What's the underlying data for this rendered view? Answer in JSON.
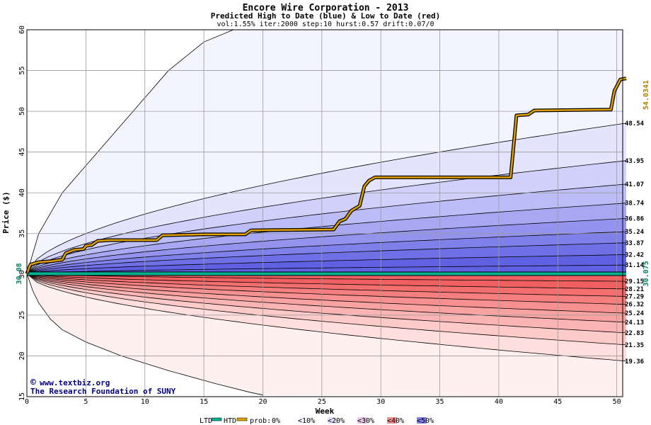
{
  "chart_data": {
    "type": "area",
    "title": "Encore Wire Corporation - 2013",
    "subtitle": "Predicted High to Date (blue) &  Low to Date (red)",
    "params": "vol:1.55% iter:2000 step:10 hurst:0.57 drift:0.07/0",
    "xlabel": "Week",
    "ylabel": "Price ($)",
    "xlim": [
      0,
      50.5
    ],
    "ylim": [
      15,
      60
    ],
    "x_ticks": [
      "0",
      "5",
      "10",
      "15",
      "20",
      "25",
      "30",
      "35",
      "40",
      "45",
      "50"
    ],
    "y_ticks": [
      "15",
      "20",
      "25",
      "30",
      "35",
      "40",
      "45",
      "50",
      "55",
      "60"
    ],
    "grid": true,
    "start_price": 30.08,
    "start_label": "30.08",
    "high_band_labels": [
      {
        "text": "48.54",
        "value": 48.54
      },
      {
        "text": "43.95",
        "value": 43.95
      },
      {
        "text": "41.07",
        "value": 41.07
      },
      {
        "text": "38.74",
        "value": 38.74
      },
      {
        "text": "36.86",
        "value": 36.86
      },
      {
        "text": "35.24",
        "value": 35.24
      },
      {
        "text": "33.87",
        "value": 33.87
      },
      {
        "text": "32.42",
        "value": 32.42
      },
      {
        "text": "31.14",
        "value": 31.14
      }
    ],
    "low_band_labels": [
      {
        "text": "29.15",
        "value": 29.15
      },
      {
        "text": "28.21",
        "value": 28.21
      },
      {
        "text": "27.29",
        "value": 27.29
      },
      {
        "text": "26.32",
        "value": 26.32
      },
      {
        "text": "25.24",
        "value": 25.24
      },
      {
        "text": "24.13",
        "value": 24.13
      },
      {
        "text": "22.83",
        "value": 22.83
      },
      {
        "text": "21.35",
        "value": 21.35
      },
      {
        "text": "19.36",
        "value": 19.36
      }
    ],
    "outer_high": [
      [
        0,
        30.08
      ],
      [
        1,
        35
      ],
      [
        3,
        40
      ],
      [
        6,
        45
      ],
      [
        9,
        50
      ],
      [
        12,
        55
      ],
      [
        15,
        58.5
      ],
      [
        17.5,
        60
      ]
    ],
    "outer_low": [
      [
        0,
        30.08
      ],
      [
        0.5,
        28
      ],
      [
        1,
        26.5
      ],
      [
        2,
        24.5
      ],
      [
        3,
        23.2
      ],
      [
        5,
        21.7
      ],
      [
        8,
        20
      ],
      [
        12,
        18.2
      ],
      [
        16,
        16.6
      ],
      [
        19,
        15.5
      ],
      [
        20,
        15.2
      ]
    ],
    "htd_series": {
      "name": "HTD",
      "color": "#e0a000",
      "points": [
        [
          0,
          30.08
        ],
        [
          0.3,
          31.2
        ],
        [
          1,
          31.5
        ],
        [
          2,
          31.6
        ],
        [
          3,
          31.8
        ],
        [
          3.3,
          32.6
        ],
        [
          4,
          33
        ],
        [
          4.8,
          33.1
        ],
        [
          5,
          33.5
        ],
        [
          5.5,
          33.6
        ],
        [
          6,
          34.1
        ],
        [
          7,
          34.2
        ],
        [
          11,
          34.2
        ],
        [
          11.5,
          34.8
        ],
        [
          15,
          34.9
        ],
        [
          18.5,
          34.9
        ],
        [
          19,
          35.4
        ],
        [
          26,
          35.5
        ],
        [
          26.5,
          36.5
        ],
        [
          27,
          36.8
        ],
        [
          27.5,
          37.8
        ],
        [
          28.2,
          38.4
        ],
        [
          28.6,
          40.8
        ],
        [
          29,
          41.5
        ],
        [
          29.5,
          41.9
        ],
        [
          41,
          41.9
        ],
        [
          41.5,
          49.5
        ],
        [
          42.5,
          49.6
        ],
        [
          43,
          50.1
        ],
        [
          49.5,
          50.2
        ],
        [
          49.8,
          52.5
        ],
        [
          50.3,
          53.9
        ],
        [
          50.8,
          54.03
        ]
      ]
    },
    "ltd_series": {
      "name": "LTD",
      "color": "#00b090",
      "points": [
        [
          0,
          30.08
        ],
        [
          50.8,
          30.075
        ]
      ]
    },
    "end_high_label": "54.0341",
    "end_low_label": "30.075",
    "credit": [
      "www.textbiz.org",
      "The Research Foundation of SUNY"
    ],
    "legend": {
      "ltd": "LTD",
      "htd": "HTD",
      "prob": "prob:",
      "buckets": [
        "0%",
        "<10%",
        "<20%",
        "<30%",
        "<40%",
        "<50%"
      ]
    },
    "colors": {
      "blue_bands": [
        "#f4f4ff",
        "#e4e4fd",
        "#d0d0fa",
        "#bcbcf6",
        "#a8a8f2",
        "#9494ee",
        "#8080ea",
        "#7070e6",
        "#6060e2"
      ],
      "red_bands": [
        "#fff0f0",
        "#ffdede",
        "#fdcaca",
        "#fbb4b4",
        "#f9a2a2",
        "#f79090",
        "#f57e7e",
        "#f36e6e",
        "#f06060"
      ],
      "legend_swatches": [
        "#ffffff",
        "#f4f4ff",
        "#e6e0f6",
        "#e6c8e6",
        "#f09090",
        "#8080ee"
      ]
    }
  }
}
